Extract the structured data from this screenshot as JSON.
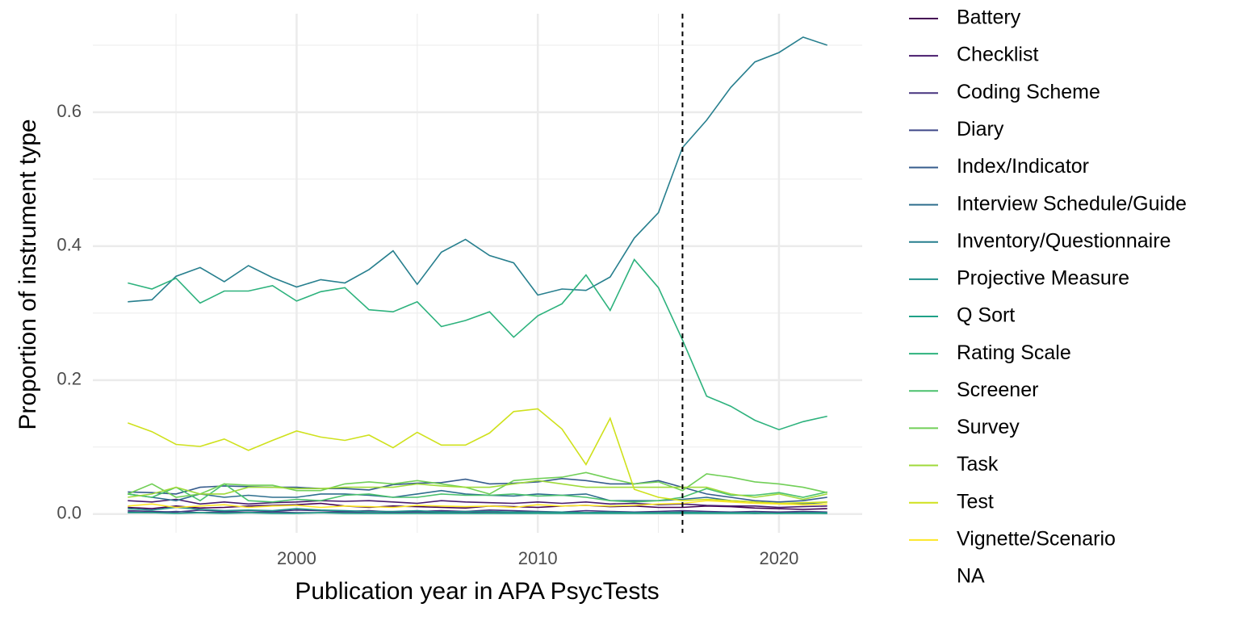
{
  "chart_data": {
    "type": "line",
    "x_label": "Publication year in APA PsycTests",
    "y_label": "Proportion of instrument type",
    "x": [
      1993,
      1994,
      1995,
      1996,
      1997,
      1998,
      1999,
      2000,
      2001,
      2002,
      2003,
      2004,
      2005,
      2006,
      2007,
      2008,
      2009,
      2010,
      2011,
      2012,
      2013,
      2014,
      2015,
      2016,
      2017,
      2018,
      2019,
      2020,
      2021,
      2022
    ],
    "xlim": [
      1991.55,
      2023.45
    ],
    "xticks": [
      2000,
      2010,
      2020
    ],
    "ylim": [
      -0.028,
      0.747
    ],
    "yticks": [
      {
        "value": 0,
        "label": "0.0"
      },
      0.2,
      0.4,
      0.6
    ],
    "grid": true,
    "vline": 2016,
    "legend": "right",
    "series": [
      {
        "name": "Battery",
        "color": "#440154",
        "values": [
          0.01,
          0.008,
          0.012,
          0.009,
          0.01,
          0.012,
          0.013,
          0.014,
          0.016,
          0.012,
          0.01,
          0.012,
          0.011,
          0.01,
          0.009,
          0.012,
          0.011,
          0.01,
          0.012,
          0.013,
          0.011,
          0.012,
          0.01,
          0.01,
          0.012,
          0.011,
          0.009,
          0.008,
          0.007,
          0.008
        ]
      },
      {
        "name": "Checklist",
        "color": "#481B6D",
        "values": [
          0.02,
          0.018,
          0.022,
          0.015,
          0.018,
          0.015,
          0.017,
          0.018,
          0.02,
          0.019,
          0.02,
          0.018,
          0.016,
          0.02,
          0.018,
          0.017,
          0.016,
          0.018,
          0.016,
          0.018,
          0.015,
          0.016,
          0.014,
          0.015,
          0.013,
          0.012,
          0.012,
          0.01,
          0.011,
          0.012
        ]
      },
      {
        "name": "Coding Scheme",
        "color": "#46337E",
        "values": [
          0.005,
          0.004,
          0.003,
          0.006,
          0.004,
          0.005,
          0.004,
          0.006,
          0.005,
          0.004,
          0.005,
          0.003,
          0.004,
          0.005,
          0.004,
          0.006,
          0.005,
          0.004,
          0.003,
          0.005,
          0.004,
          0.003,
          0.004,
          0.005,
          0.004,
          0.003,
          0.004,
          0.003,
          0.004,
          0.003
        ]
      },
      {
        "name": "Diary",
        "color": "#3F4889",
        "values": [
          0.003,
          0.002,
          0.004,
          0.002,
          0.003,
          0.002,
          0.003,
          0.002,
          0.002,
          0.003,
          0.002,
          0.002,
          0.003,
          0.002,
          0.002,
          0.003,
          0.002,
          0.003,
          0.002,
          0.002,
          0.002,
          0.003,
          0.002,
          0.002,
          0.002,
          0.002,
          0.001,
          0.002,
          0.002,
          0.001
        ]
      },
      {
        "name": "Index/Indicator",
        "color": "#365C8D",
        "values": [
          0.033,
          0.032,
          0.03,
          0.04,
          0.042,
          0.041,
          0.04,
          0.04,
          0.038,
          0.038,
          0.036,
          0.044,
          0.046,
          0.047,
          0.052,
          0.045,
          0.046,
          0.048,
          0.053,
          0.05,
          0.045,
          0.045,
          0.05,
          0.04,
          0.03,
          0.025,
          0.02,
          0.018,
          0.02,
          0.025
        ]
      },
      {
        "name": "Interview Schedule/Guide",
        "color": "#2E6E8E",
        "values": [
          0.03,
          0.025,
          0.02,
          0.03,
          0.025,
          0.028,
          0.025,
          0.025,
          0.03,
          0.03,
          0.028,
          0.025,
          0.03,
          0.035,
          0.03,
          0.028,
          0.027,
          0.03,
          0.028,
          0.03,
          0.02,
          0.02,
          0.02,
          0.022,
          0.025,
          0.02,
          0.018,
          0.015,
          0.015,
          0.018
        ]
      },
      {
        "name": "Inventory/Questionnaire",
        "color": "#277F8E",
        "values": [
          0.317,
          0.32,
          0.355,
          0.368,
          0.347,
          0.371,
          0.353,
          0.339,
          0.35,
          0.345,
          0.365,
          0.393,
          0.343,
          0.391,
          0.41,
          0.386,
          0.375,
          0.327,
          0.336,
          0.334,
          0.354,
          0.412,
          0.45,
          0.547,
          0.588,
          0.637,
          0.675,
          0.689,
          0.712,
          0.7
        ]
      },
      {
        "name": "Projective Measure",
        "color": "#21908C",
        "values": [
          0.008,
          0.006,
          0.01,
          0.007,
          0.005,
          0.006,
          0.005,
          0.008,
          0.006,
          0.005,
          0.004,
          0.004,
          0.005,
          0.003,
          0.004,
          0.004,
          0.003,
          0.003,
          0.003,
          0.002,
          0.003,
          0.002,
          0.002,
          0.003,
          0.002,
          0.002,
          0.002,
          0.001,
          0.002,
          0.002
        ]
      },
      {
        "name": "Q Sort",
        "color": "#1FA187",
        "values": [
          0.002,
          0.002,
          0.001,
          0.002,
          0.001,
          0.002,
          0.001,
          0.001,
          0.002,
          0.001,
          0.001,
          0.001,
          0.001,
          0.001,
          0.001,
          0.001,
          0.001,
          0.001,
          0.001,
          0.001,
          0.001,
          0.001,
          0.001,
          0.001,
          0.001,
          0.001,
          0.001,
          0.001,
          0.001,
          0.001
        ]
      },
      {
        "name": "Rating Scale",
        "color": "#2DB27D",
        "values": [
          0.345,
          0.336,
          0.352,
          0.315,
          0.333,
          0.333,
          0.341,
          0.318,
          0.332,
          0.338,
          0.305,
          0.302,
          0.317,
          0.28,
          0.289,
          0.302,
          0.264,
          0.296,
          0.314,
          0.357,
          0.304,
          0.38,
          0.338,
          0.26,
          0.176,
          0.161,
          0.14,
          0.126,
          0.138,
          0.146
        ]
      },
      {
        "name": "Screener",
        "color": "#4AC16D",
        "values": [
          0.03,
          0.025,
          0.04,
          0.02,
          0.045,
          0.02,
          0.018,
          0.022,
          0.02,
          0.028,
          0.03,
          0.025,
          0.025,
          0.03,
          0.028,
          0.028,
          0.03,
          0.027,
          0.028,
          0.025,
          0.02,
          0.018,
          0.02,
          0.025,
          0.038,
          0.028,
          0.028,
          0.032,
          0.025,
          0.033
        ]
      },
      {
        "name": "Survey",
        "color": "#71CF57",
        "values": [
          0.03,
          0.045,
          0.025,
          0.03,
          0.045,
          0.043,
          0.043,
          0.035,
          0.035,
          0.045,
          0.048,
          0.045,
          0.05,
          0.045,
          0.04,
          0.03,
          0.05,
          0.053,
          0.055,
          0.062,
          0.053,
          0.045,
          0.048,
          0.035,
          0.06,
          0.055,
          0.048,
          0.045,
          0.04,
          0.032
        ]
      },
      {
        "name": "Task",
        "color": "#9FDA3A",
        "values": [
          0.025,
          0.03,
          0.04,
          0.03,
          0.03,
          0.04,
          0.04,
          0.038,
          0.038,
          0.04,
          0.04,
          0.04,
          0.045,
          0.042,
          0.04,
          0.04,
          0.045,
          0.05,
          0.045,
          0.04,
          0.04,
          0.04,
          0.04,
          0.04,
          0.04,
          0.03,
          0.025,
          0.03,
          0.022,
          0.03
        ]
      },
      {
        "name": "Test",
        "color": "#CFE11C",
        "values": [
          0.136,
          0.123,
          0.104,
          0.101,
          0.112,
          0.095,
          0.11,
          0.124,
          0.115,
          0.11,
          0.118,
          0.099,
          0.122,
          0.103,
          0.103,
          0.121,
          0.153,
          0.157,
          0.127,
          0.074,
          0.143,
          0.037,
          0.025,
          0.02,
          0.022,
          0.02,
          0.018,
          0.016,
          0.017,
          0.018
        ]
      },
      {
        "name": "Vignette/Scenario",
        "color": "#FDE725",
        "values": [
          0.012,
          0.015,
          0.01,
          0.012,
          0.014,
          0.01,
          0.012,
          0.013,
          0.01,
          0.012,
          0.011,
          0.01,
          0.013,
          0.012,
          0.011,
          0.012,
          0.01,
          0.014,
          0.012,
          0.013,
          0.012,
          0.013,
          0.015,
          0.016,
          0.02,
          0.018,
          0.016,
          0.015,
          0.014,
          0.015
        ]
      },
      {
        "name": "NA",
        "color": null,
        "values": [
          null,
          null,
          null,
          null,
          null,
          null,
          null,
          null,
          null,
          null,
          null,
          null,
          null,
          null,
          null,
          null,
          null,
          null,
          null,
          null,
          null,
          null,
          null,
          null,
          null,
          null,
          null,
          null,
          null,
          null
        ]
      }
    ]
  }
}
